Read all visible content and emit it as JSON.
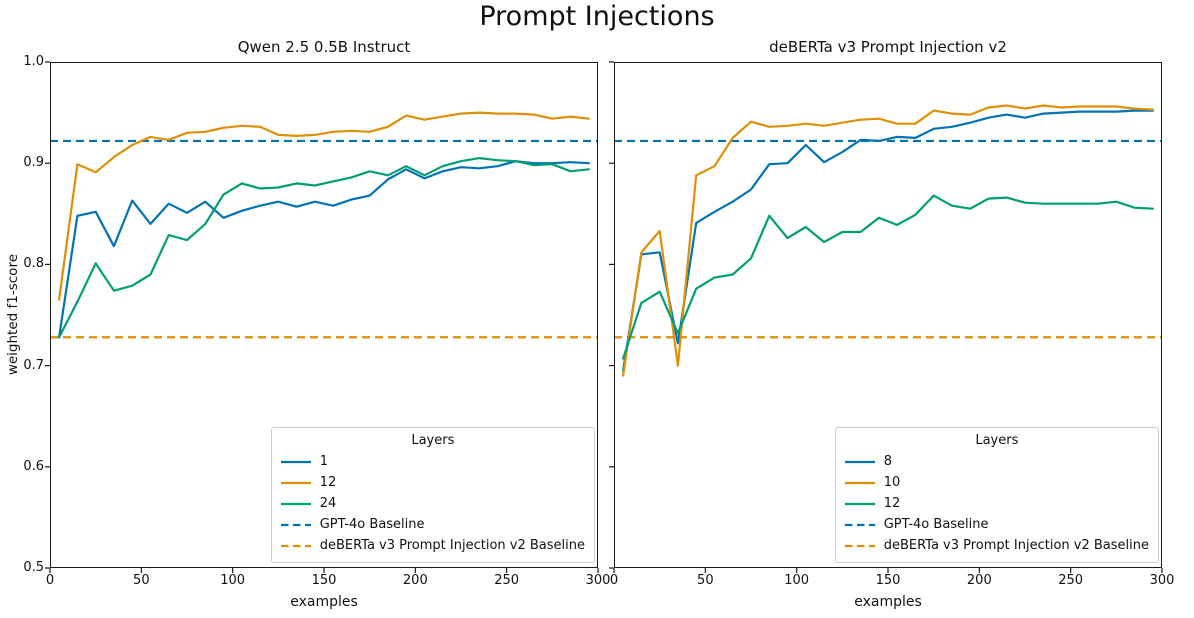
{
  "suptitle": "Prompt Injections",
  "palette": {
    "blue": "#0173B2",
    "orange": "#DE8F05",
    "green": "#029E73",
    "frame": "#1a1a1a"
  },
  "chart_data": [
    {
      "type": "line",
      "title": "Qwen 2.5 0.5B Instruct",
      "xlabel": "examples",
      "ylabel": "weighted f1-score",
      "xlim": [
        0,
        300
      ],
      "ylim": [
        0.5,
        1.0
      ],
      "xticks": [
        "0",
        "50",
        "100",
        "150",
        "200",
        "250",
        "300"
      ],
      "yticks": [
        "0.5",
        "0.6",
        "0.7",
        "0.8",
        "0.9",
        "1.0"
      ],
      "show_ytick_labels": true,
      "grid": false,
      "legend_title": "Layers",
      "legend_position": "lower right",
      "x": [
        5,
        15,
        25,
        35,
        45,
        55,
        65,
        75,
        85,
        95,
        105,
        115,
        125,
        135,
        145,
        155,
        165,
        175,
        185,
        195,
        205,
        215,
        225,
        235,
        245,
        255,
        265,
        275,
        285,
        295
      ],
      "series": [
        {
          "name": "1",
          "color": "#0173B2",
          "style": "solid",
          "values": [
            0.728,
            0.848,
            0.852,
            0.818,
            0.863,
            0.84,
            0.86,
            0.851,
            0.862,
            0.846,
            0.853,
            0.858,
            0.862,
            0.857,
            0.862,
            0.858,
            0.864,
            0.868,
            0.884,
            0.894,
            0.885,
            0.892,
            0.896,
            0.895,
            0.897,
            0.902,
            0.9,
            0.9,
            0.901,
            0.9
          ]
        },
        {
          "name": "12",
          "color": "#DE8F05",
          "style": "solid",
          "values": [
            0.765,
            0.899,
            0.891,
            0.906,
            0.918,
            0.926,
            0.923,
            0.93,
            0.931,
            0.935,
            0.937,
            0.936,
            0.928,
            0.927,
            0.928,
            0.931,
            0.932,
            0.931,
            0.936,
            0.947,
            0.943,
            0.946,
            0.949,
            0.95,
            0.949,
            0.949,
            0.948,
            0.944,
            0.946,
            0.944
          ]
        },
        {
          "name": "24",
          "color": "#029E73",
          "style": "solid",
          "values": [
            0.728,
            0.763,
            0.801,
            0.774,
            0.779,
            0.79,
            0.829,
            0.824,
            0.84,
            0.869,
            0.88,
            0.875,
            0.876,
            0.88,
            0.878,
            0.882,
            0.886,
            0.892,
            0.888,
            0.897,
            0.888,
            0.897,
            0.902,
            0.905,
            0.903,
            0.902,
            0.898,
            0.899,
            0.892,
            0.894
          ]
        },
        {
          "name": "GPT-4o Baseline",
          "color": "#0173B2",
          "style": "dashed",
          "baseline": 0.922
        },
        {
          "name": "deBERTa v3 Prompt Injection v2 Baseline",
          "color": "#DE8F05",
          "style": "dashed",
          "baseline": 0.728
        }
      ]
    },
    {
      "type": "line",
      "title": "deBERTa v3 Prompt Injection v2",
      "xlabel": "examples",
      "ylabel": "weighted f1-score",
      "xlim": [
        0,
        300
      ],
      "ylim": [
        0.5,
        1.0
      ],
      "xticks": [
        "0",
        "50",
        "100",
        "150",
        "200",
        "250",
        "300"
      ],
      "yticks": [
        "0.5",
        "0.6",
        "0.7",
        "0.8",
        "0.9",
        "1.0"
      ],
      "show_ytick_labels": false,
      "grid": false,
      "legend_title": "Layers",
      "legend_position": "lower right",
      "x": [
        5,
        15,
        25,
        35,
        45,
        55,
        65,
        75,
        85,
        95,
        105,
        115,
        125,
        135,
        145,
        155,
        165,
        175,
        185,
        195,
        205,
        215,
        225,
        235,
        245,
        255,
        265,
        275,
        285,
        295
      ],
      "series": [
        {
          "name": "8",
          "color": "#0173B2",
          "style": "solid",
          "values": [
            0.695,
            0.81,
            0.812,
            0.722,
            0.841,
            0.852,
            0.862,
            0.874,
            0.899,
            0.9,
            0.918,
            0.901,
            0.911,
            0.923,
            0.922,
            0.926,
            0.925,
            0.934,
            0.936,
            0.94,
            0.945,
            0.948,
            0.945,
            0.949,
            0.95,
            0.951,
            0.951,
            0.951,
            0.952,
            0.952
          ]
        },
        {
          "name": "10",
          "color": "#DE8F05",
          "style": "solid",
          "values": [
            0.69,
            0.812,
            0.833,
            0.7,
            0.888,
            0.897,
            0.925,
            0.941,
            0.936,
            0.937,
            0.939,
            0.937,
            0.94,
            0.943,
            0.944,
            0.939,
            0.939,
            0.952,
            0.949,
            0.948,
            0.955,
            0.957,
            0.954,
            0.957,
            0.955,
            0.956,
            0.956,
            0.956,
            0.954,
            0.953
          ]
        },
        {
          "name": "12",
          "color": "#029E73",
          "style": "solid",
          "values": [
            0.707,
            0.762,
            0.773,
            0.732,
            0.776,
            0.787,
            0.79,
            0.806,
            0.848,
            0.826,
            0.837,
            0.822,
            0.832,
            0.832,
            0.846,
            0.839,
            0.849,
            0.868,
            0.858,
            0.855,
            0.865,
            0.866,
            0.861,
            0.86,
            0.86,
            0.86,
            0.86,
            0.862,
            0.856,
            0.855
          ]
        },
        {
          "name": "GPT-4o Baseline",
          "color": "#0173B2",
          "style": "dashed",
          "baseline": 0.922
        },
        {
          "name": "deBERTa v3 Prompt Injection v2 Baseline",
          "color": "#DE8F05",
          "style": "dashed",
          "baseline": 0.728
        }
      ]
    }
  ]
}
